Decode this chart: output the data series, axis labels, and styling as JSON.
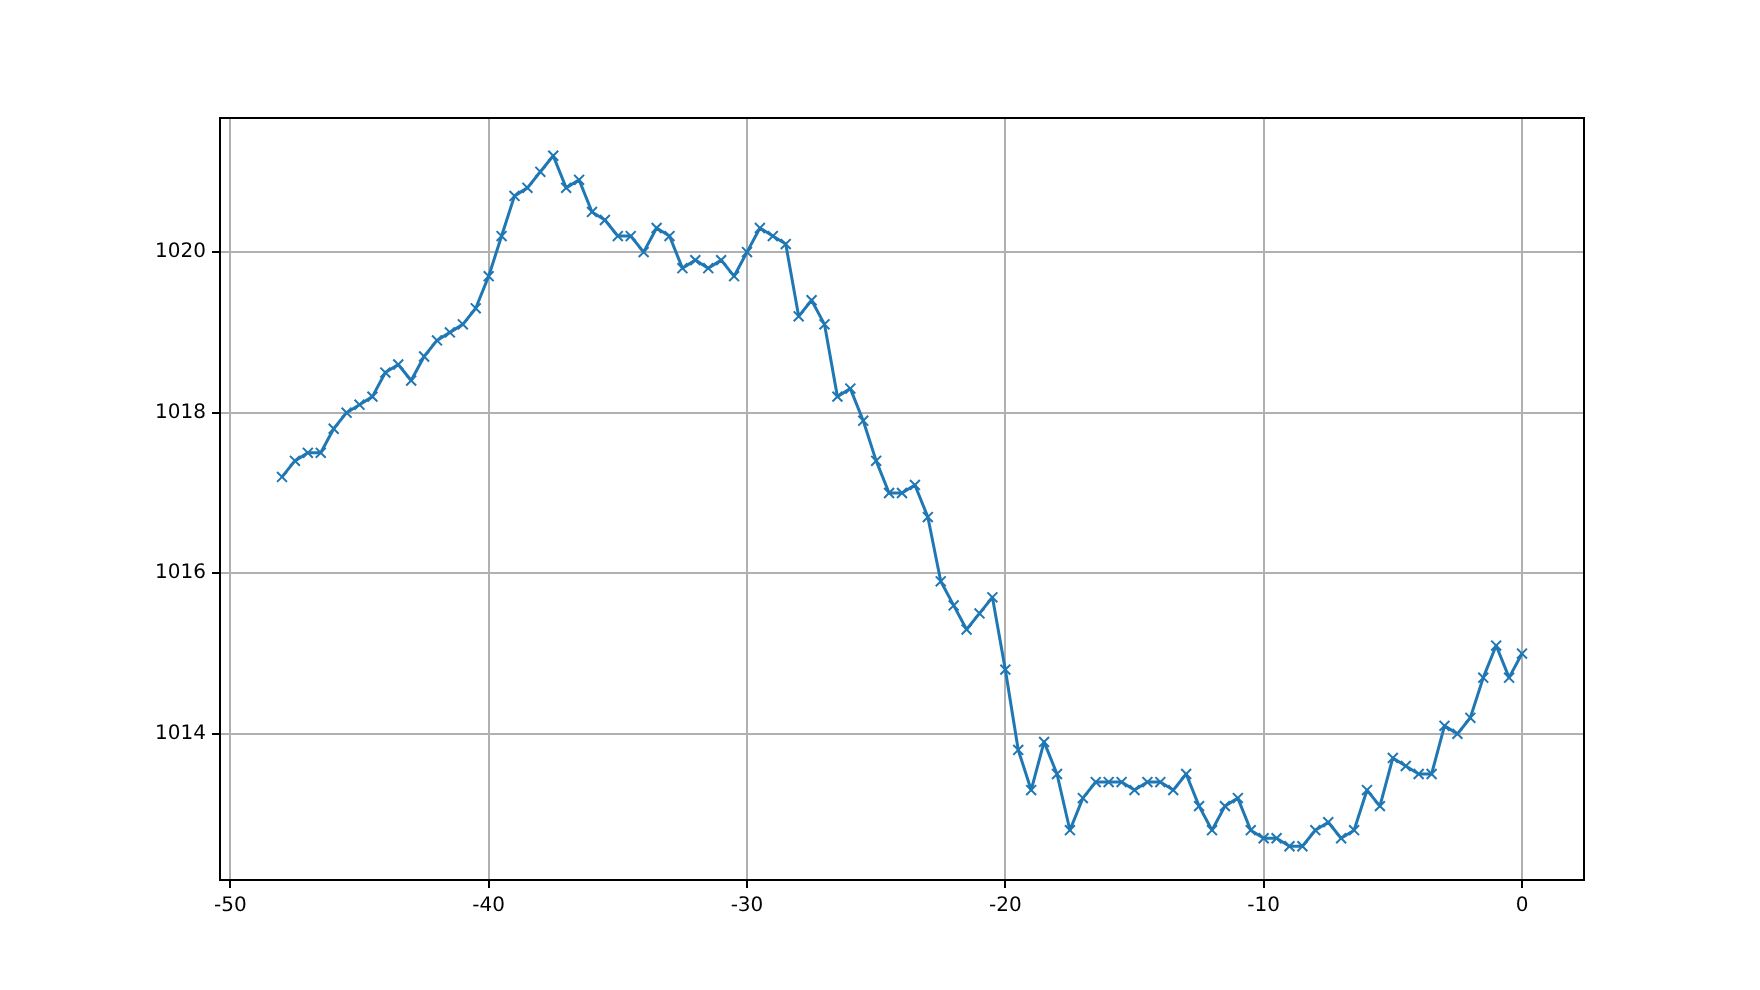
{
  "chart_data": {
    "type": "line",
    "x": [
      -48,
      -47.5,
      -47,
      -46.5,
      -46,
      -45.5,
      -45,
      -44.5,
      -44,
      -43.5,
      -43,
      -42.5,
      -42,
      -41.5,
      -41,
      -40.5,
      -40,
      -39.5,
      -39,
      -38.5,
      -38,
      -37.5,
      -37,
      -36.5,
      -36,
      -35.5,
      -35,
      -34.5,
      -34,
      -33.5,
      -33,
      -32.5,
      -32,
      -31.5,
      -31,
      -30.5,
      -30,
      -29.5,
      -29,
      -28.5,
      -28,
      -27.5,
      -27,
      -26.5,
      -26,
      -25.5,
      -25,
      -24.5,
      -24,
      -23.5,
      -23,
      -22.5,
      -22,
      -21.5,
      -21,
      -20.5,
      -20,
      -19.5,
      -19,
      -18.5,
      -18,
      -17.5,
      -17,
      -16.5,
      -16,
      -15.5,
      -15,
      -14.5,
      -14,
      -13.5,
      -13,
      -12.5,
      -12,
      -11.5,
      -11,
      -10.5,
      -10,
      -9.5,
      -9,
      -8.5,
      -8,
      -7.5,
      -7,
      -6.5,
      -6,
      -5.5,
      -5,
      -4.5,
      -4,
      -3.5,
      -3,
      -2.5,
      -2,
      -1.5,
      -1,
      -0.5,
      0
    ],
    "series": [
      {
        "color": "#1f77b4",
        "values": [
          1017.2,
          1017.4,
          1017.5,
          1017.5,
          1017.8,
          1018.0,
          1018.1,
          1018.2,
          1018.5,
          1018.6,
          1018.4,
          1018.7,
          1018.9,
          1019.0,
          1019.1,
          1019.3,
          1019.7,
          1020.2,
          1020.7,
          1020.8,
          1021.0,
          1021.2,
          1020.8,
          1020.9,
          1020.5,
          1020.4,
          1020.2,
          1020.2,
          1020.0,
          1020.3,
          1020.2,
          1019.8,
          1019.9,
          1019.8,
          1019.9,
          1019.7,
          1020.0,
          1020.3,
          1020.2,
          1020.1,
          1019.2,
          1019.4,
          1019.1,
          1018.2,
          1018.3,
          1017.9,
          1017.4,
          1017.0,
          1017.0,
          1017.1,
          1016.7,
          1015.9,
          1015.6,
          1015.3,
          1015.5,
          1015.7,
          1014.8,
          1013.8,
          1013.3,
          1013.9,
          1013.5,
          1012.8,
          1013.2,
          1013.4,
          1013.4,
          1013.4,
          1013.3,
          1013.4,
          1013.4,
          1013.3,
          1013.5,
          1013.1,
          1012.8,
          1013.1,
          1013.2,
          1012.8,
          1012.7,
          1012.7,
          1012.6,
          1012.6,
          1012.8,
          1012.9,
          1012.7,
          1012.8,
          1013.3,
          1013.1,
          1013.7,
          1013.6,
          1013.5,
          1013.5,
          1014.1,
          1014.0,
          1014.2,
          1014.7,
          1015.1,
          1014.7,
          1015.0
        ]
      }
    ],
    "xlim": [
      -50.4,
      2.4
    ],
    "xticks": [
      -50,
      -40,
      -30,
      -20,
      -10,
      0
    ],
    "ylim": [
      1012.18,
      1021.67
    ],
    "yticks": [
      1014,
      1016,
      1018,
      1020
    ],
    "grid": true,
    "marker": "cross",
    "line_style": "solid",
    "legend": false
  }
}
